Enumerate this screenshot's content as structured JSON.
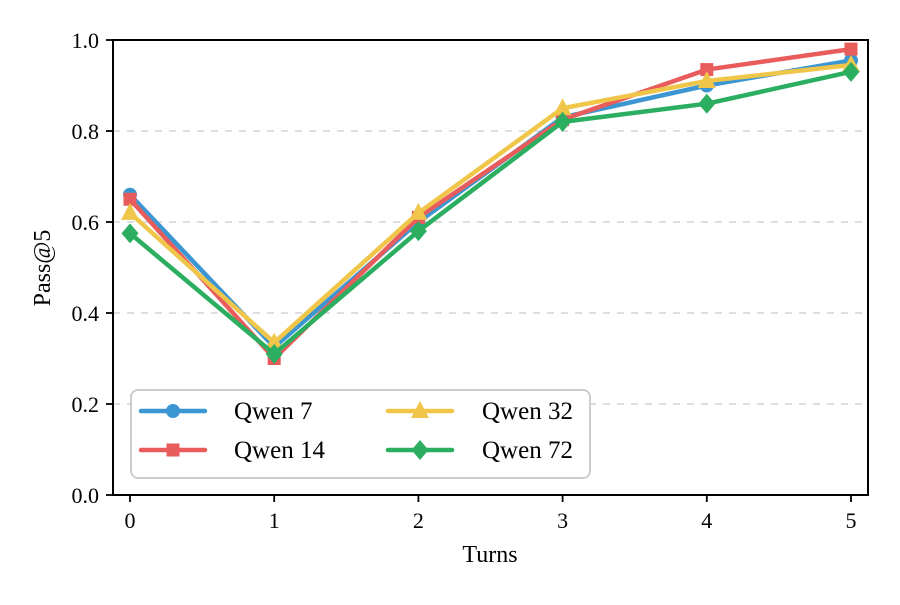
{
  "chart_data": {
    "type": "line",
    "title": "",
    "xlabel": "Turns",
    "ylabel": "Pass@5",
    "x": [
      0,
      1,
      2,
      3,
      4,
      5
    ],
    "xlim": [
      0,
      5
    ],
    "ylim": [
      0.0,
      1.0
    ],
    "xticks": [
      "0",
      "1",
      "2",
      "3",
      "4",
      "5"
    ],
    "yticks": [
      "0.0",
      "0.2",
      "0.4",
      "0.6",
      "0.8",
      "1.0"
    ],
    "ytick_values": [
      0.0,
      0.2,
      0.4,
      0.6,
      0.8,
      1.0
    ],
    "grid": "horizontal dashed",
    "legend_position": "lower left, 2 columns",
    "series": [
      {
        "name": "Qwen 7",
        "color": "#3C96D2",
        "marker": "circle",
        "values": [
          0.66,
          0.325,
          0.6,
          0.83,
          0.9,
          0.955
        ]
      },
      {
        "name": "Qwen 14",
        "color": "#E95C5C",
        "marker": "square",
        "values": [
          0.65,
          0.3,
          0.61,
          0.825,
          0.935,
          0.98
        ]
      },
      {
        "name": "Qwen 32",
        "color": "#F0C64A",
        "marker": "triangle",
        "values": [
          0.62,
          0.335,
          0.62,
          0.85,
          0.91,
          0.945
        ]
      },
      {
        "name": "Qwen 72",
        "color": "#2BAE60",
        "marker": "diamond",
        "values": [
          0.575,
          0.31,
          0.58,
          0.82,
          0.86,
          0.93
        ]
      }
    ],
    "colors": {
      "grid": "#d4d4d4",
      "frame": "#000000",
      "background": "#ffffff",
      "legend_border": "#cccccc",
      "legend_background": "#ffffff"
    }
  }
}
